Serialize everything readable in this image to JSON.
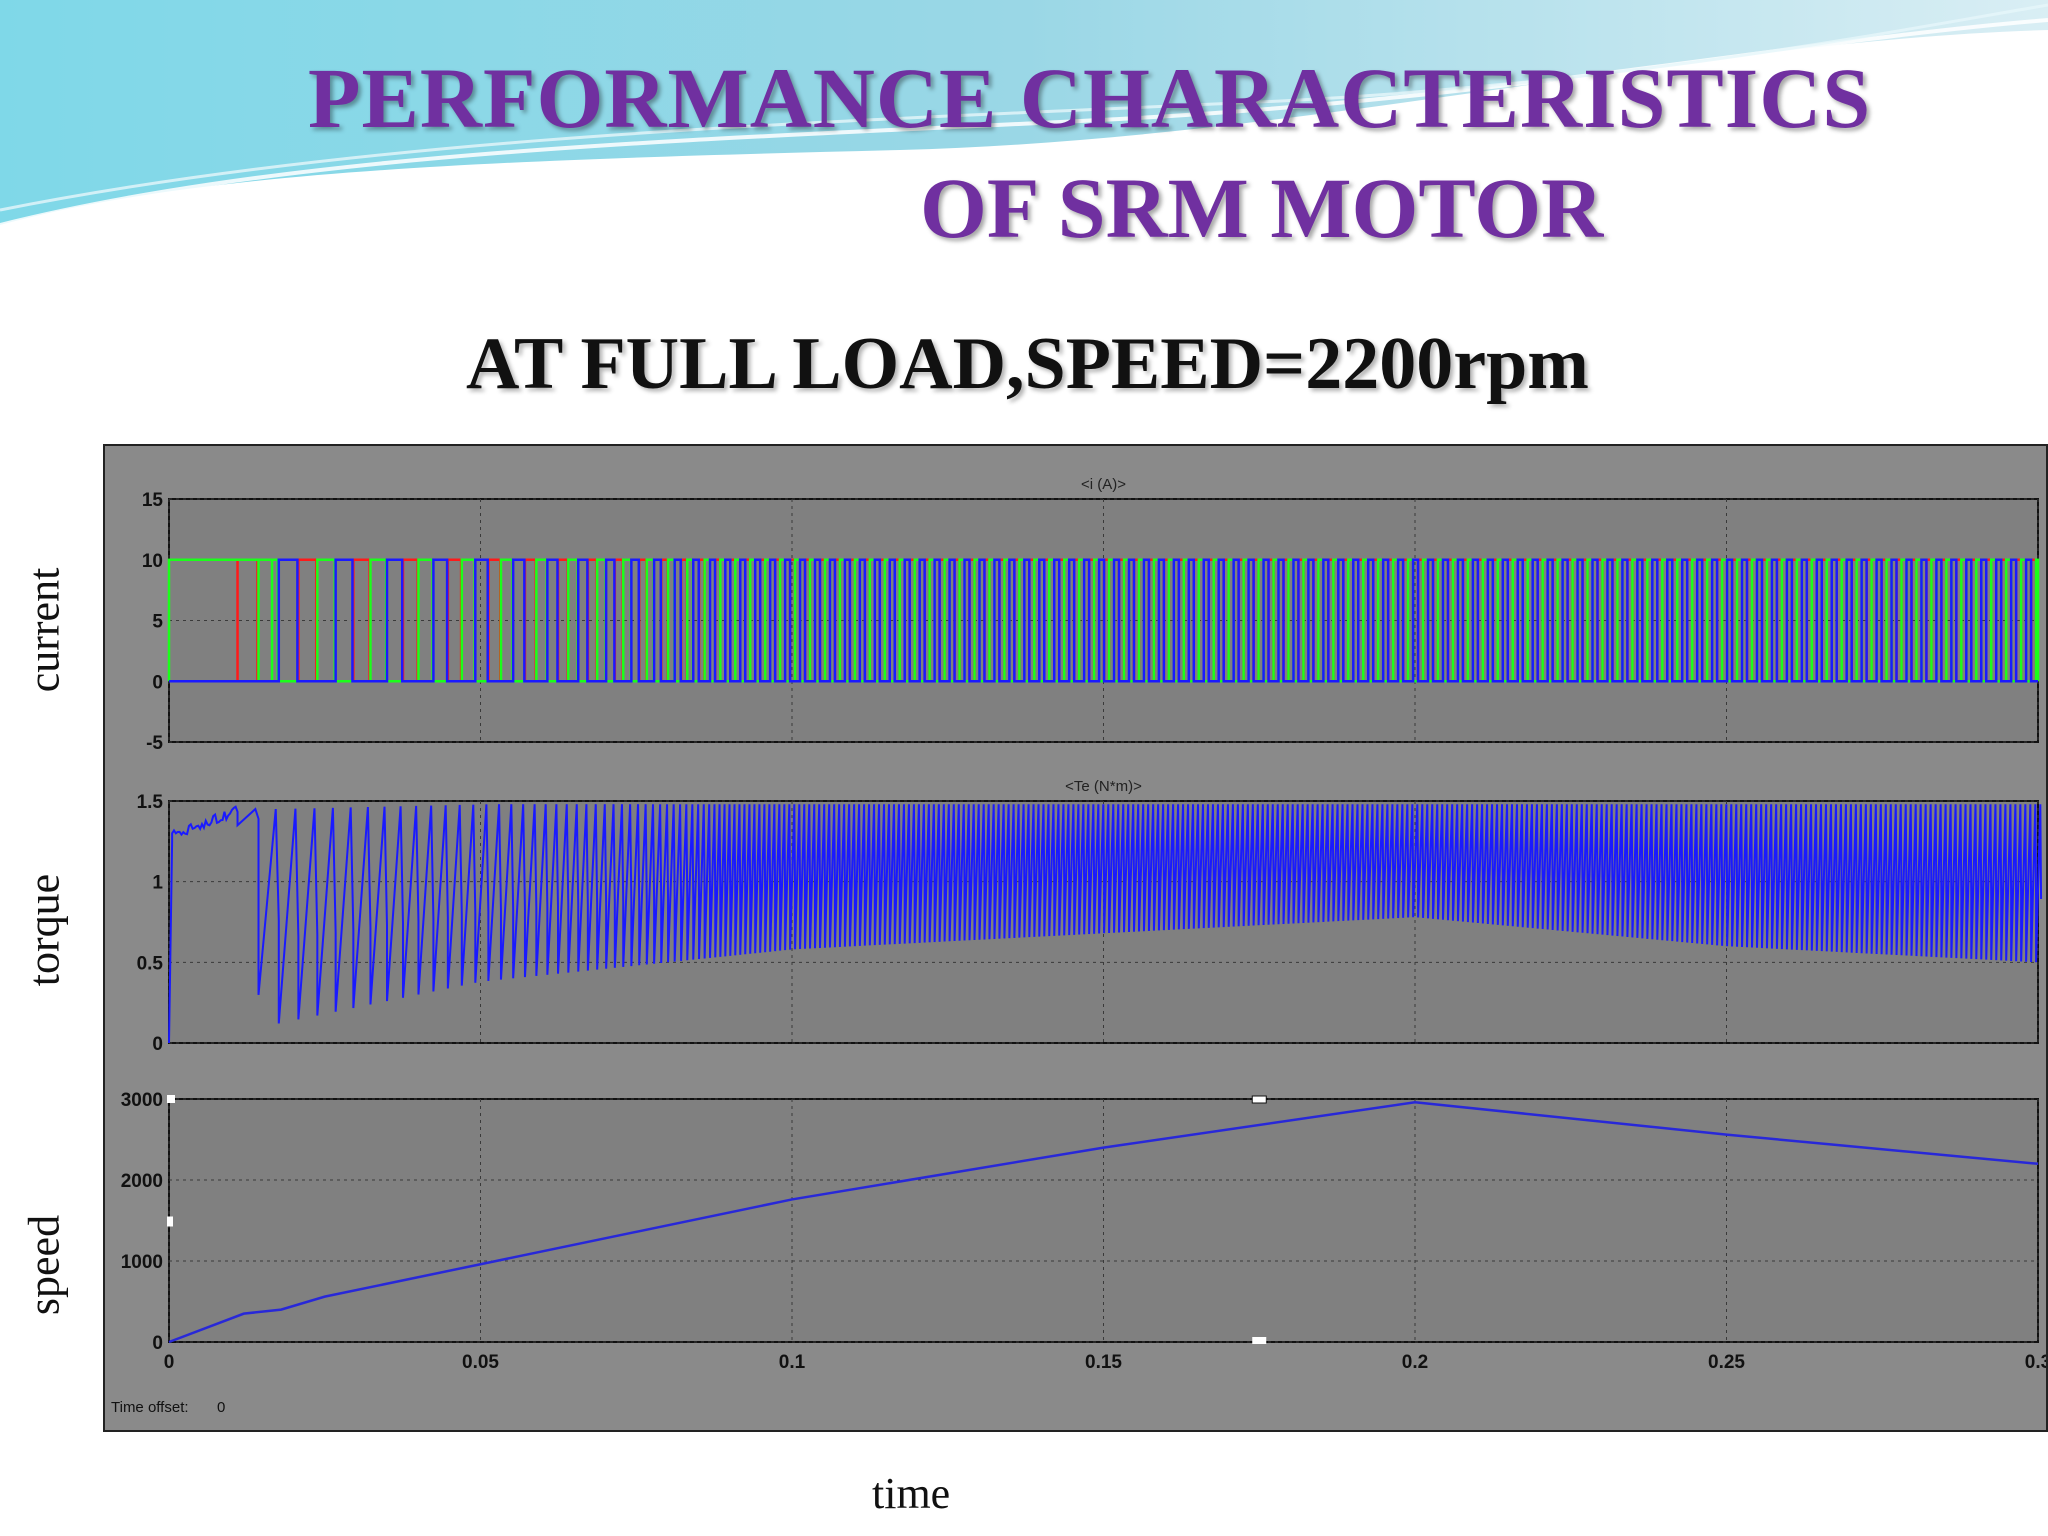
{
  "slide": {
    "title_line1": "PERFORMANCE  CHARACTERISTICS",
    "title_line2": "OF SRM MOTOR",
    "subtitle": "AT FULL LOAD,SPEED=2200rpm",
    "label_current": "current",
    "label_torque": "torque",
    "label_speed": "speed",
    "label_time": "time"
  },
  "colors": {
    "title": "#7030a0",
    "scope_bg": "#8a8a8a",
    "plot_bg": "#808080",
    "phase_a": "#ff1a1a",
    "phase_b": "#1aff1a",
    "phase_c": "#1a1aff",
    "torque": "#1a1aff",
    "speed": "#2828d8"
  },
  "chart_data": [
    {
      "type": "line",
      "title": "<i (A)>",
      "xlim": [
        0,
        0.3
      ],
      "ylim": [
        -5,
        15
      ],
      "yticks": [
        15,
        10,
        5,
        0,
        -5
      ],
      "grid": true,
      "series": [
        {
          "name": "",
          "description_low": 0,
          "description_high": 10,
          "kind": "pulse-train",
          "phases": 3
        }
      ],
      "pulse_peak": 10,
      "pulse_base": 0
    },
    {
      "type": "line",
      "title": "<Te (N*m)>",
      "xlim": [
        0,
        0.3
      ],
      "ylim": [
        0,
        1.5
      ],
      "yticks": [
        1.5,
        1,
        0.5,
        0
      ],
      "grid": true,
      "envelope": {
        "x": [
          0,
          0.011,
          0.015,
          0.05,
          0.1,
          0.15,
          0.2,
          0.25,
          0.3
        ],
        "upper": [
          1.3,
          1.45,
          1.45,
          1.48,
          1.48,
          1.48,
          1.48,
          1.48,
          1.48
        ],
        "lower": [
          1.25,
          1.35,
          0.1,
          0.38,
          0.58,
          0.68,
          0.78,
          0.6,
          0.5
        ]
      }
    },
    {
      "type": "line",
      "title": "",
      "xlim": [
        0,
        0.3
      ],
      "ylim": [
        0,
        3000
      ],
      "yticks": [
        3000,
        2000,
        1000,
        0
      ],
      "xticks": [
        "0",
        "0.05",
        "0.1",
        "0.15",
        "0.2",
        "0.25",
        "0.3"
      ],
      "grid": true,
      "x": [
        0,
        0.012,
        0.018,
        0.025,
        0.05,
        0.1,
        0.15,
        0.2,
        0.25,
        0.3
      ],
      "y": [
        0,
        350,
        400,
        560,
        960,
        1760,
        2400,
        2960,
        2560,
        2200
      ]
    }
  ],
  "scope": {
    "time_offset_label": "Time offset:",
    "time_offset_value": "0"
  }
}
